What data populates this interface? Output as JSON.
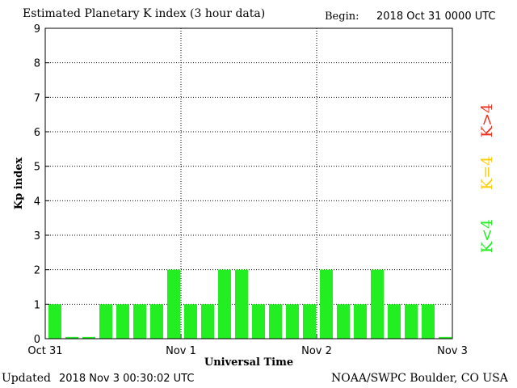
{
  "header": {
    "title": "Estimated Planetary K index (3 hour data)",
    "begin_label": "Begin:",
    "begin_value": "2018 Oct 31 0000 UTC"
  },
  "footer": {
    "updated_label": "Updated",
    "updated_value": "2018 Nov  3 00:30:02 UTC",
    "credit": "NOAA/SWPC Boulder, CO USA"
  },
  "colors": {
    "below": "#22ee22",
    "equal": "#ffcc00",
    "above": "#ee3322"
  },
  "legend": {
    "below": "K<4",
    "equal": "K=4",
    "above": "K>4"
  },
  "chart_data": {
    "type": "bar",
    "ylabel": "Kp index",
    "xlabel": "Universal Time",
    "ylim": [
      0,
      9
    ],
    "yticks": [
      0,
      1,
      2,
      3,
      4,
      5,
      6,
      7,
      8,
      9
    ],
    "xticks": [
      "Oct 31",
      "Nov 1",
      "Nov 2",
      "Nov 3"
    ],
    "bins_per_day": 8,
    "values": [
      1,
      0.05,
      0.05,
      1,
      1,
      1,
      1,
      2,
      1,
      1,
      2,
      2,
      1,
      1,
      1,
      1,
      2,
      1,
      1,
      2,
      1,
      1,
      1,
      0.05
    ],
    "grid": true
  }
}
